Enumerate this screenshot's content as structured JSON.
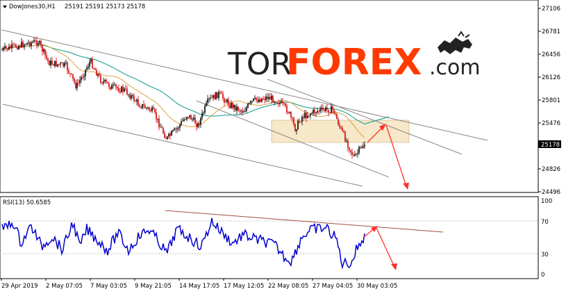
{
  "header": {
    "symbol": "DowJones30,H1",
    "ohlc": "25191 25191 25173 25178"
  },
  "watermark": {
    "part1": "TOR",
    "part2": "FOREX",
    "part3": ".com"
  },
  "price_axis": {
    "ticks": [
      "27106",
      "26781",
      "26456",
      "26126",
      "25801",
      "25476",
      "25178",
      "24826",
      "24496"
    ],
    "current": "25178"
  },
  "rsi": {
    "label": "RSI(13) 50.6585",
    "ticks": [
      "100",
      "70",
      "30",
      "0"
    ]
  },
  "time_axis": {
    "ticks": [
      "29 Apr 2019",
      "2 May 07:05",
      "7 May 03:05",
      "9 May 21:05",
      "14 May 17:05",
      "17 May 12:05",
      "22 May 08:05",
      "27 May 04:05",
      "30 May 03:05"
    ]
  },
  "colors": {
    "bull": "#000000",
    "bear": "#d40000",
    "ma_fast": "#e0a040",
    "ma_slow": "#2aa89a",
    "rsi_line": "#0000cc",
    "trend_line": "#888888",
    "rsi_trend": "#a0503c",
    "arrow": "#ff3030",
    "zone_fill": "#f5e4c0",
    "watermark_tor": "#222222",
    "watermark_forex": "#ff3a00"
  },
  "chart_data": {
    "type": "candlestick",
    "x_range": [
      "29 Apr 2019",
      "30 May 2019"
    ],
    "ylim": [
      24400,
      27200
    ],
    "key_levels": [
      27106,
      26781,
      26456,
      26126,
      25801,
      25476,
      24826,
      24496
    ],
    "last_price": 25178,
    "rsi_period": 13,
    "rsi_value": 50.6585,
    "rsi_levels": [
      70,
      30
    ],
    "rsi_ylim": [
      0,
      100
    ]
  }
}
